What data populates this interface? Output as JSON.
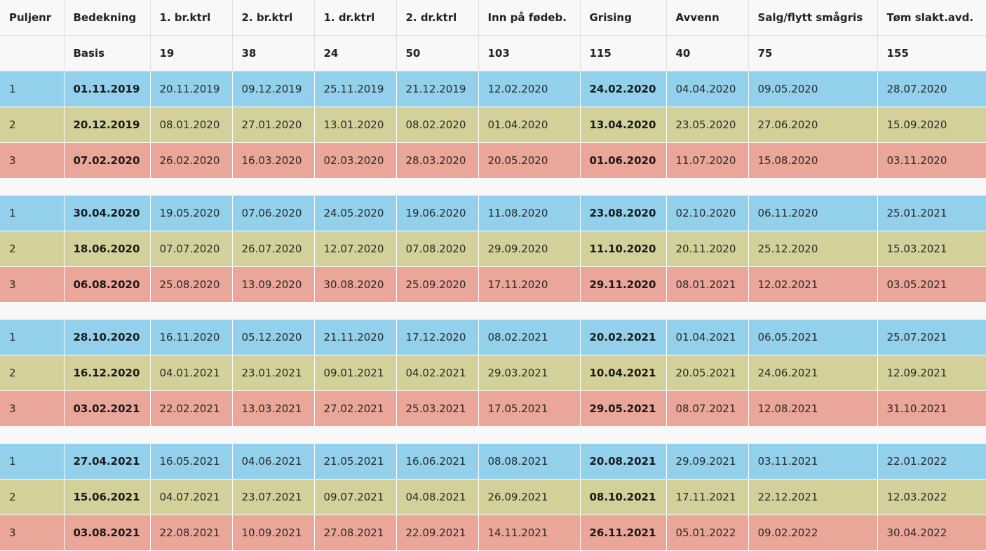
{
  "headers": [
    "Puljenr",
    "Bedekning",
    "1. br.ktrl",
    "2. br.ktrl",
    "1. dr.ktrl",
    "2. dr.ktrl",
    "Inn på fødeb.",
    "Grising",
    "Avvenn",
    "Salg/flytt smågris",
    "Tøm slakt.avd."
  ],
  "basis": [
    "",
    "Basis",
    "19",
    "38",
    "24",
    "50",
    "103",
    "115",
    "40",
    "75",
    "155"
  ],
  "bold_columns": [
    1,
    7
  ],
  "row_colors": {
    "1": "#92d0eb",
    "2": "#d3d09a",
    "3": "#eaa699"
  },
  "groups": [
    [
      [
        "1",
        "01.11.2019",
        "20.11.2019",
        "09.12.2019",
        "25.11.2019",
        "21.12.2019",
        "12.02.2020",
        "24.02.2020",
        "04.04.2020",
        "09.05.2020",
        "28.07.2020"
      ],
      [
        "2",
        "20.12.2019",
        "08.01.2020",
        "27.01.2020",
        "13.01.2020",
        "08.02.2020",
        "01.04.2020",
        "13.04.2020",
        "23.05.2020",
        "27.06.2020",
        "15.09.2020"
      ],
      [
        "3",
        "07.02.2020",
        "26.02.2020",
        "16.03.2020",
        "02.03.2020",
        "28.03.2020",
        "20.05.2020",
        "01.06.2020",
        "11.07.2020",
        "15.08.2020",
        "03.11.2020"
      ]
    ],
    [
      [
        "1",
        "30.04.2020",
        "19.05.2020",
        "07.06.2020",
        "24.05.2020",
        "19.06.2020",
        "11.08.2020",
        "23.08.2020",
        "02.10.2020",
        "06.11.2020",
        "25.01.2021"
      ],
      [
        "2",
        "18.06.2020",
        "07.07.2020",
        "26.07.2020",
        "12.07.2020",
        "07.08.2020",
        "29.09.2020",
        "11.10.2020",
        "20.11.2020",
        "25.12.2020",
        "15.03.2021"
      ],
      [
        "3",
        "06.08.2020",
        "25.08.2020",
        "13.09.2020",
        "30.08.2020",
        "25.09.2020",
        "17.11.2020",
        "29.11.2020",
        "08.01.2021",
        "12.02.2021",
        "03.05.2021"
      ]
    ],
    [
      [
        "1",
        "28.10.2020",
        "16.11.2020",
        "05.12.2020",
        "21.11.2020",
        "17.12.2020",
        "08.02.2021",
        "20.02.2021",
        "01.04.2021",
        "06.05.2021",
        "25.07.2021"
      ],
      [
        "2",
        "16.12.2020",
        "04.01.2021",
        "23.01.2021",
        "09.01.2021",
        "04.02.2021",
        "29.03.2021",
        "10.04.2021",
        "20.05.2021",
        "24.06.2021",
        "12.09.2021"
      ],
      [
        "3",
        "03.02.2021",
        "22.02.2021",
        "13.03.2021",
        "27.02.2021",
        "25.03.2021",
        "17.05.2021",
        "29.05.2021",
        "08.07.2021",
        "12.08.2021",
        "31.10.2021"
      ]
    ],
    [
      [
        "1",
        "27.04.2021",
        "16.05.2021",
        "04.06.2021",
        "21.05.2021",
        "16.06.2021",
        "08.08.2021",
        "20.08.2021",
        "29.09.2021",
        "03.11.2021",
        "22.01.2022"
      ],
      [
        "2",
        "15.06.2021",
        "04.07.2021",
        "23.07.2021",
        "09.07.2021",
        "04.08.2021",
        "26.09.2021",
        "08.10.2021",
        "17.11.2021",
        "22.12.2021",
        "12.03.2022"
      ],
      [
        "3",
        "03.08.2021",
        "22.08.2021",
        "10.09.2021",
        "27.08.2021",
        "22.09.2021",
        "14.11.2021",
        "26.11.2021",
        "05.01.2022",
        "09.02.2022",
        "30.04.2022"
      ]
    ]
  ]
}
